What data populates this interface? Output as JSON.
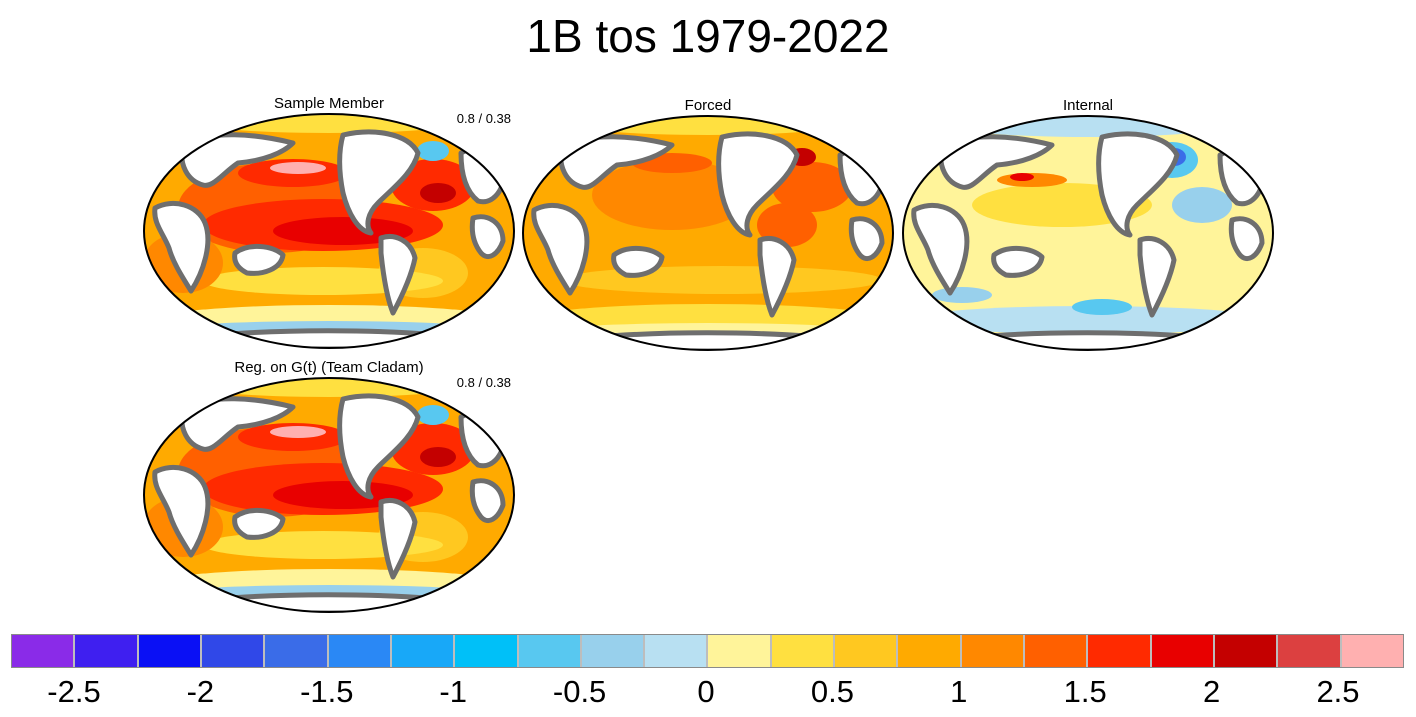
{
  "title": "1B tos 1979-2022",
  "panels": [
    {
      "id": "p1",
      "title": "Sample Member",
      "stat": "0.8 / 0.38",
      "pattern": "sample"
    },
    {
      "id": "p2",
      "title": "Forced",
      "stat": "",
      "pattern": "forced"
    },
    {
      "id": "p3",
      "title": "Internal",
      "stat": "",
      "pattern": "internal"
    },
    {
      "id": "p4",
      "title": "Reg. on G(t) (Team Cladam)",
      "stat": "0.8 / 0.38",
      "pattern": "sample"
    }
  ],
  "colorbar": {
    "colors": [
      "#8a2be8",
      "#3f1ff0",
      "#0a10f5",
      "#3048e8",
      "#3a6ce8",
      "#2a88f5",
      "#18a8f8",
      "#00c0f8",
      "#58c8f0",
      "#98d0ec",
      "#b8e0f2",
      "#fff49a",
      "#ffe040",
      "#ffc820",
      "#ffaa00",
      "#ff8800",
      "#ff6000",
      "#ff2a00",
      "#e80000",
      "#c40000",
      "#dc4040",
      "#ffb0b0"
    ],
    "tick_labels": [
      "-2.5",
      "-2",
      "-1.5",
      "-1",
      "-0.5",
      "0",
      "0.5",
      "1",
      "1.5",
      "2",
      "2.5"
    ]
  },
  "colors": {
    "land": "#ffffff",
    "coastline": "#6e6e6e",
    "border": "#000000"
  }
}
